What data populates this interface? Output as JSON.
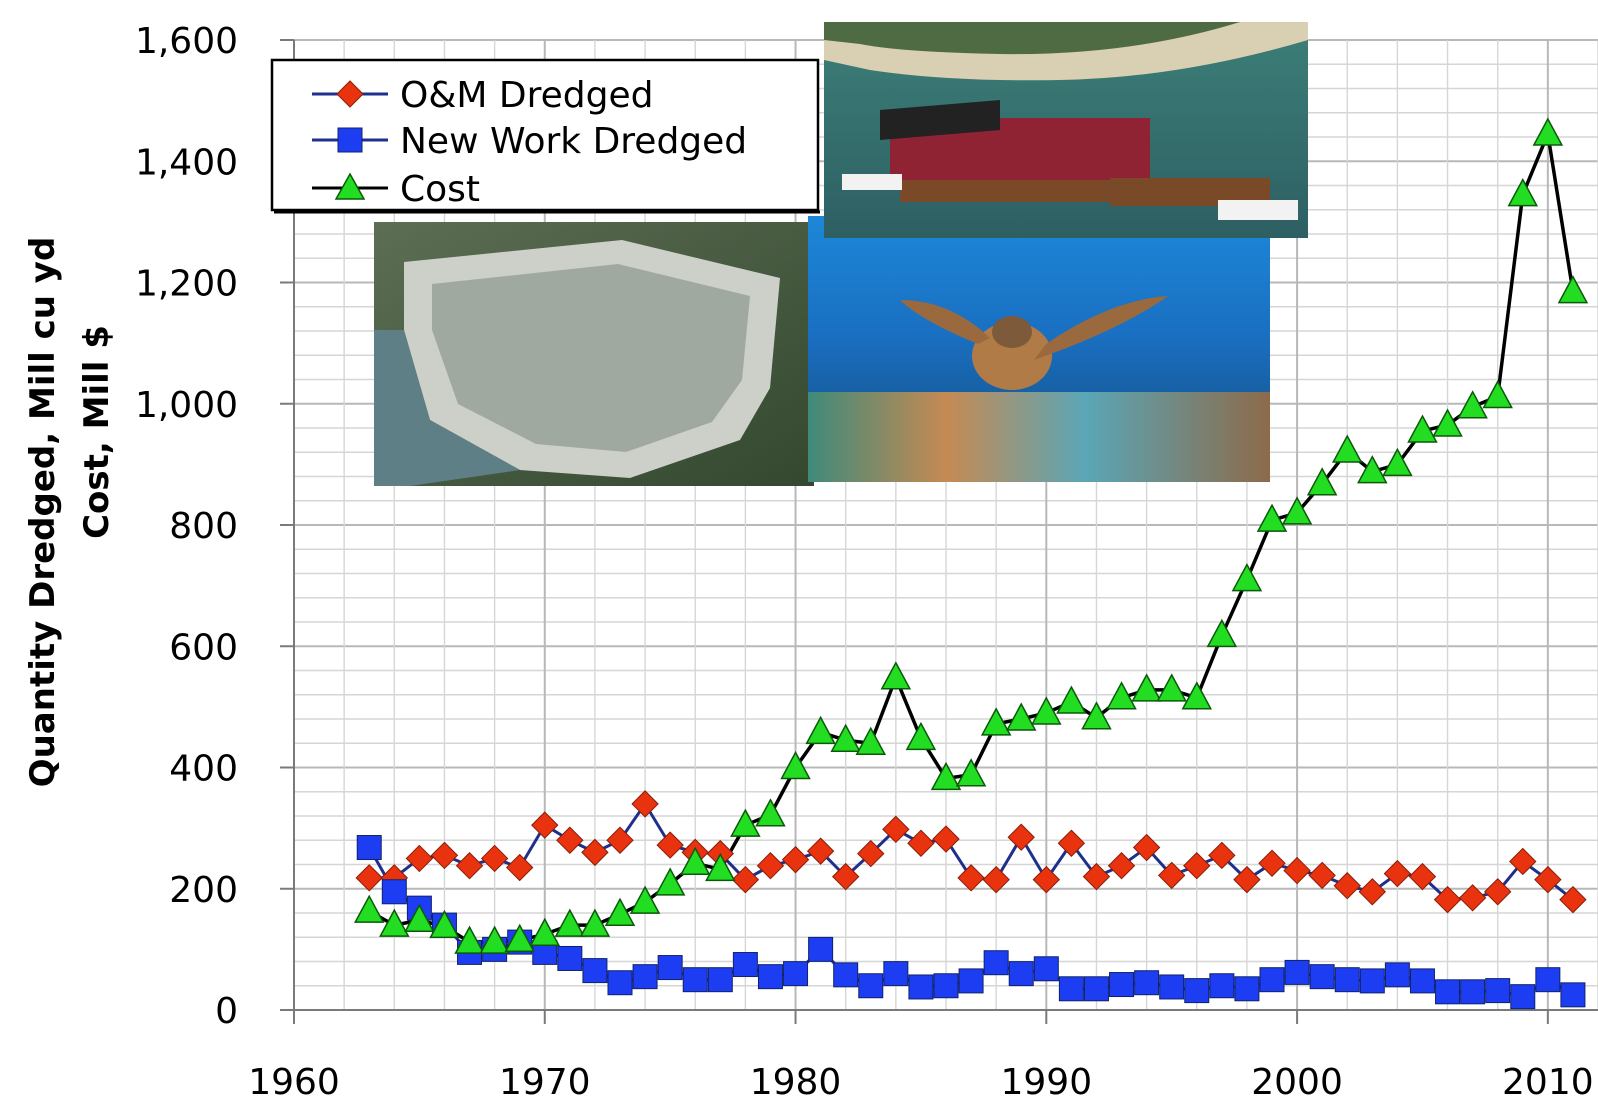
{
  "chart_data": {
    "type": "line",
    "title": "",
    "xlabel": "",
    "ylabel_lines": [
      "Quantity Dredged, Mill cu yd",
      "Cost, Mill $"
    ],
    "xlim": [
      1960,
      2012
    ],
    "ylim": [
      0,
      1600
    ],
    "x_ticks": [
      1960,
      1970,
      1980,
      1990,
      2000,
      2010
    ],
    "y_ticks": [
      0,
      200,
      400,
      600,
      800,
      1000,
      1200,
      1400,
      1600
    ],
    "y_tick_labels": [
      "0",
      "200",
      "400",
      "600",
      "800",
      "1,000",
      "1,200",
      "1,400",
      "1,600"
    ],
    "grid": true,
    "legend_position": "top-left",
    "x": [
      1963,
      1964,
      1965,
      1966,
      1967,
      1968,
      1969,
      1970,
      1971,
      1972,
      1973,
      1974,
      1975,
      1976,
      1977,
      1978,
      1979,
      1980,
      1981,
      1982,
      1983,
      1984,
      1985,
      1986,
      1987,
      1988,
      1989,
      1990,
      1991,
      1992,
      1993,
      1994,
      1995,
      1996,
      1997,
      1998,
      1999,
      2000,
      2001,
      2002,
      2003,
      2004,
      2005,
      2006,
      2007,
      2008,
      2009,
      2010,
      2011
    ],
    "series": [
      {
        "name": "O&M Dredged",
        "marker": "diamond",
        "line_color": "#1f2f8c",
        "marker_color": "#e8330e",
        "values": [
          218,
          218,
          250,
          255,
          238,
          250,
          235,
          305,
          280,
          260,
          280,
          340,
          272,
          260,
          258,
          215,
          238,
          248,
          262,
          220,
          258,
          298,
          275,
          282,
          218,
          215,
          285,
          215,
          275,
          220,
          238,
          268,
          222,
          238,
          255,
          215,
          242,
          230,
          222,
          205,
          195,
          225,
          220,
          182,
          185,
          195,
          245,
          215,
          182
        ]
      },
      {
        "name": "New Work Dredged",
        "marker": "square",
        "line_color": "#1f2f8c",
        "marker_color": "#1d3df2",
        "values": [
          268,
          195,
          168,
          140,
          95,
          100,
          112,
          95,
          85,
          65,
          45,
          55,
          70,
          50,
          50,
          75,
          55,
          60,
          100,
          58,
          40,
          60,
          38,
          40,
          48,
          78,
          60,
          68,
          35,
          35,
          42,
          45,
          38,
          32,
          40,
          35,
          50,
          62,
          55,
          50,
          48,
          58,
          48,
          30,
          30,
          32,
          22,
          50,
          25
        ]
      },
      {
        "name": "Cost",
        "marker": "triangle",
        "line_color": "#000000",
        "marker_color": "#22dd22",
        "values": [
          163,
          140,
          148,
          138,
          112,
          112,
          115,
          125,
          140,
          140,
          158,
          178,
          208,
          242,
          232,
          305,
          322,
          400,
          458,
          445,
          440,
          548,
          448,
          382,
          388,
          472,
          480,
          490,
          508,
          482,
          515,
          528,
          528,
          515,
          618,
          710,
          808,
          820,
          868,
          922,
          888,
          900,
          955,
          965,
          995,
          1012,
          1345,
          1445,
          1185
        ]
      }
    ]
  },
  "photos": {
    "dredge_barge": "aerial photo of dredge barge with tugboats",
    "containment_site": "aerial photo of dredged material containment island",
    "sea_turtle": "underwater photo of sea turtle over coral reef"
  }
}
